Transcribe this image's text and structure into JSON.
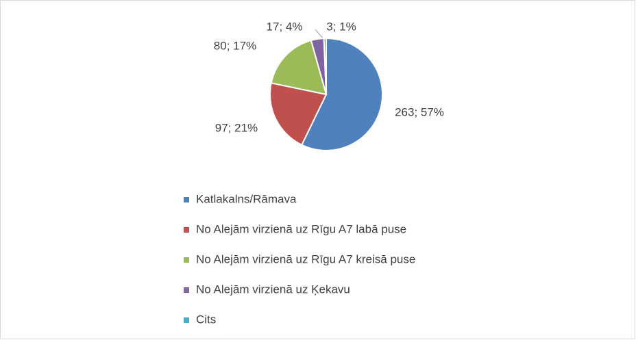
{
  "chart_data": {
    "type": "pie",
    "categories": [
      "Katlakalns/Rāmava",
      "No Alejām virzienā uz Rīgu A7 labā puse",
      "No Alejām virzienā uz Rīgu A7 kreisā puse",
      "No Alejām virzienā uz Ķekavu",
      "Cits"
    ],
    "values": [
      263,
      97,
      80,
      17,
      3
    ],
    "value_labels": [
      "263; 57%",
      "97; 21%",
      "80; 17%",
      "17; 4%",
      "3; 1%"
    ],
    "colors": [
      "#4f81bd",
      "#c0504d",
      "#9bbb59",
      "#8064a2",
      "#4bacc6"
    ]
  }
}
